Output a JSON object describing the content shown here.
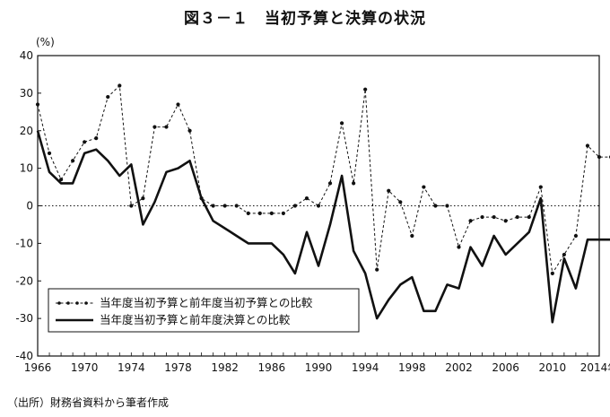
{
  "title": "図３－１　当初予算と決算の状況",
  "unit": "(%)",
  "source": "（出所）財務省資料から筆者作成",
  "chart_data": {
    "type": "line",
    "title": "図３－１　当初予算と決算の状況",
    "ylabel": "(%)",
    "xlabel": "",
    "ylim": [
      -40,
      40
    ],
    "xlim": [
      1966,
      2014
    ],
    "yticks": [
      "40",
      "30",
      "20",
      "10",
      "0",
      "-10",
      "-20",
      "-30",
      "-40"
    ],
    "xtick_labels": [
      "1966",
      "1970",
      "1974",
      "1978",
      "1982",
      "1986",
      "1990",
      "1994",
      "1998",
      "2002",
      "2006",
      "2010",
      "2014年"
    ],
    "legend_position": "bottom-left",
    "grid": false,
    "zero_line": "dotted",
    "x": [
      1966,
      1967,
      1968,
      1969,
      1970,
      1971,
      1972,
      1973,
      1974,
      1975,
      1976,
      1977,
      1978,
      1979,
      1980,
      1981,
      1982,
      1983,
      1984,
      1985,
      1986,
      1987,
      1988,
      1989,
      1990,
      1991,
      1992,
      1993,
      1994,
      1995,
      1996,
      1997,
      1998,
      1999,
      2000,
      2001,
      2002,
      2003,
      2004,
      2005,
      2006,
      2007,
      2008,
      2009,
      2010,
      2011,
      2012,
      2013,
      2014,
      2015
    ],
    "series": [
      {
        "name": "当年度当初予算と前年度当初予算との比較",
        "style": "dashed-with-markers",
        "values": [
          27,
          14,
          7,
          12,
          17,
          18,
          29,
          32,
          0,
          2,
          21,
          21,
          27,
          20,
          2,
          0,
          0,
          0,
          -2,
          -2,
          -2,
          -2,
          0,
          2,
          0,
          6,
          22,
          6,
          31,
          -17,
          4,
          1,
          -8,
          5,
          0,
          0,
          -11,
          -4,
          -3,
          -3,
          -4,
          -3,
          -3,
          5,
          -18,
          -13,
          -8,
          16,
          13,
          13
        ]
      },
      {
        "name": "当年度当初予算と前年度決算との比較",
        "style": "solid",
        "values": [
          20,
          9,
          6,
          6,
          14,
          15,
          12,
          8,
          11,
          -5,
          1,
          9,
          10,
          12,
          2,
          -4,
          -6,
          -8,
          -10,
          -10,
          -10,
          -13,
          -18,
          -7,
          -16,
          -5,
          8,
          -12,
          -18,
          -30,
          -25,
          -21,
          -19,
          -28,
          -28,
          -21,
          -22,
          -11,
          -16,
          -8,
          -13,
          -10,
          -7,
          2,
          -31,
          -14,
          -22,
          -9,
          -9,
          -9
        ]
      }
    ]
  }
}
